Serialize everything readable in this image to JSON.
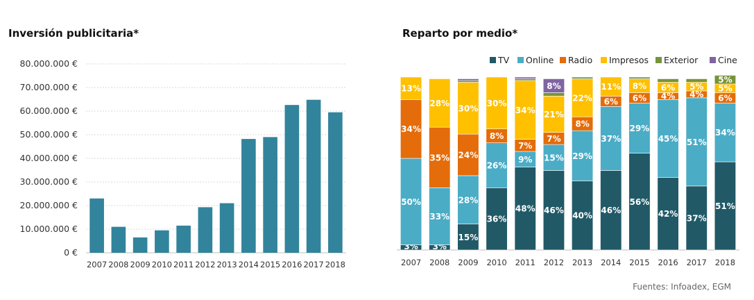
{
  "left_chart": {
    "title": "Inversión publicitaria*"
  },
  "right_chart": {
    "title": "Reparto por medio*"
  },
  "source": "Fuentes: Infoadex, EGM",
  "colors": {
    "bar": "#31849b",
    "TV": "#215967",
    "Online": "#4bacc6",
    "Radio": "#e46c0a",
    "Impresos": "#ffc000",
    "Exterior": "#77933c",
    "Cine": "#8064a2",
    "grid": "#d9d9d9",
    "axis": "#595959"
  },
  "chart_data": [
    {
      "type": "bar",
      "title": "Inversión publicitaria*",
      "categories": [
        "2007",
        "2008",
        "2009",
        "2010",
        "2011",
        "2012",
        "2013",
        "2014",
        "2015",
        "2016",
        "2017",
        "2018"
      ],
      "values": [
        23000000,
        11000000,
        6500000,
        9500000,
        11500000,
        19300000,
        21000000,
        48200000,
        49000000,
        62600000,
        64800000,
        59500000
      ],
      "ylim": [
        0,
        80000000
      ],
      "yticks": [
        "0 €",
        "10.000.000 €",
        "20.000.000 €",
        "30.000.000 €",
        "40.000.000 €",
        "50.000.000 €",
        "60.000.000 €",
        "70.000.000 €",
        "80.000.000 €"
      ],
      "grid": true
    },
    {
      "type": "bar",
      "stacked": true,
      "title": "Reparto por medio*",
      "legend_position": "top-right",
      "categories": [
        "2007",
        "2008",
        "2009",
        "2010",
        "2011",
        "2012",
        "2013",
        "2014",
        "2015",
        "2016",
        "2017",
        "2018"
      ],
      "series": [
        {
          "name": "TV",
          "values": [
            3,
            3,
            15,
            36,
            48,
            46,
            40,
            46,
            56,
            42,
            37,
            51
          ],
          "labels": [
            "3%",
            "3%",
            "15%",
            "36%",
            "48%",
            "46%",
            "40%",
            "46%",
            "56%",
            "42%",
            "37%",
            "51%"
          ]
        },
        {
          "name": "Online",
          "values": [
            50,
            33,
            28,
            26,
            9,
            15,
            29,
            37,
            29,
            45,
            51,
            34
          ],
          "labels": [
            "50%",
            "33%",
            "28%",
            "26%",
            "9%",
            "15%",
            "29%",
            "37%",
            "29%",
            "45%",
            "51%",
            "34%"
          ]
        },
        {
          "name": "Radio",
          "values": [
            34,
            35,
            24,
            8,
            7,
            7,
            8,
            6,
            6,
            4,
            4,
            6
          ],
          "labels": [
            "34%",
            "35%",
            "24%",
            "8%",
            "7%",
            "7%",
            "8%",
            "6%",
            "6%",
            "4%",
            "4%",
            "6%"
          ]
        },
        {
          "name": "Impresos",
          "values": [
            13,
            28,
            30,
            30,
            34,
            21,
            22,
            11,
            8,
            6,
            5,
            5
          ],
          "labels": [
            "13%",
            "28%",
            "30%",
            "30%",
            "34%",
            "21%",
            "22%",
            "11%",
            "8%",
            "6%",
            "5%",
            "5%"
          ]
        },
        {
          "name": "Exterior",
          "values": [
            0,
            0,
            1,
            0,
            1,
            2,
            1,
            0,
            1,
            2,
            2,
            5
          ],
          "labels": [
            "",
            "",
            "",
            "",
            "",
            "",
            "",
            "",
            "",
            "",
            "",
            "5%"
          ]
        },
        {
          "name": "Cine",
          "values": [
            0,
            0,
            1,
            0,
            1,
            8,
            0,
            0,
            0,
            0,
            0,
            0
          ],
          "labels": [
            "",
            "",
            "",
            "",
            "",
            "8%",
            "",
            "",
            "",
            "",
            "",
            ""
          ]
        }
      ],
      "ylim": [
        0,
        100
      ]
    }
  ]
}
